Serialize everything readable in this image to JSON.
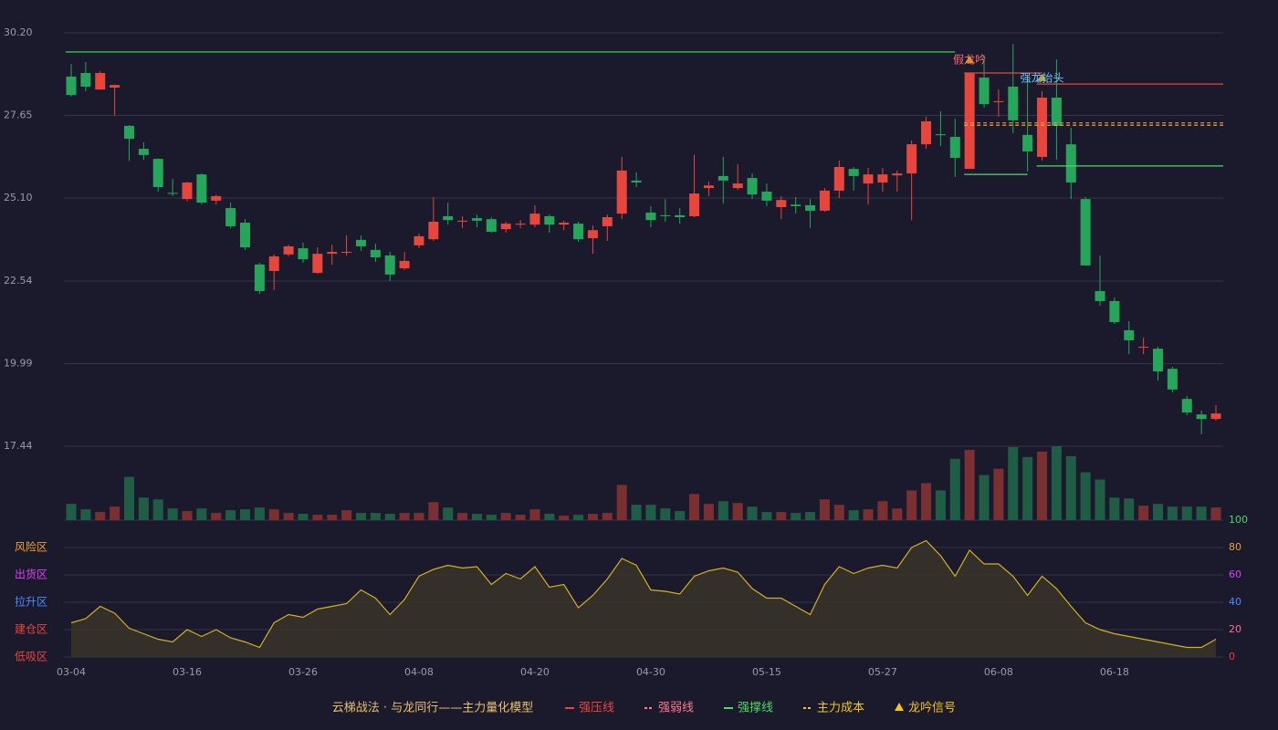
{
  "chart_data": {
    "type": "candlestick",
    "categories": [
      "03-04",
      null,
      null,
      null,
      null,
      null,
      null,
      null,
      "03-16",
      null,
      null,
      null,
      null,
      null,
      null,
      null,
      "03-26",
      null,
      null,
      null,
      null,
      null,
      null,
      null,
      "04-08",
      null,
      null,
      null,
      null,
      null,
      null,
      null,
      "04-20",
      null,
      null,
      null,
      null,
      null,
      null,
      null,
      "04-30",
      null,
      null,
      null,
      null,
      null,
      null,
      null,
      "05-15",
      null,
      null,
      null,
      null,
      null,
      null,
      null,
      "05-27",
      null,
      null,
      null,
      null,
      null,
      null,
      null,
      "06-08",
      null,
      null,
      null,
      null,
      null,
      null,
      null,
      "06-18",
      null,
      null,
      null,
      null,
      null,
      null,
      null
    ],
    "open": [
      28.85,
      28.96,
      28.45,
      28.51,
      27.33,
      26.62,
      26.31,
      25.26,
      25.07,
      25.83,
      25.02,
      24.79,
      24.34,
      23.05,
      22.85,
      23.36,
      23.55,
      22.79,
      23.38,
      23.43,
      23.81,
      23.5,
      23.33,
      22.93,
      23.64,
      23.83,
      24.54,
      24.37,
      24.48,
      24.45,
      24.14,
      24.28,
      24.28,
      24.54,
      24.28,
      24.31,
      23.86,
      24.23,
      24.62,
      25.64,
      24.65,
      24.57,
      24.57,
      24.54,
      25.41,
      25.78,
      25.41,
      25.72,
      25.3,
      24.82,
      24.9,
      24.88,
      24.71,
      25.33,
      26.0,
      25.55,
      25.58,
      25.8,
      25.86,
      26.76,
      27.07,
      26.99,
      26.0,
      28.82,
      28.06,
      28.54,
      27.05,
      26.37,
      28.2,
      26.76,
      25.07,
      22.23,
      21.92,
      21.02,
      20.48,
      20.45,
      19.83,
      18.9,
      18.42,
      18.28
    ],
    "high": [
      29.24,
      29.3,
      29.02,
      28.6,
      27.35,
      26.82,
      26.33,
      25.69,
      25.6,
      25.86,
      25.2,
      24.96,
      24.45,
      23.1,
      23.36,
      23.66,
      23.72,
      23.58,
      23.66,
      23.95,
      23.95,
      23.69,
      23.44,
      23.44,
      24.0,
      25.13,
      24.96,
      24.54,
      24.59,
      24.51,
      24.37,
      24.42,
      24.88,
      24.59,
      24.4,
      24.37,
      24.25,
      24.59,
      26.37,
      25.89,
      24.85,
      25.07,
      24.79,
      26.43,
      25.61,
      26.37,
      26.14,
      25.86,
      25.55,
      25.16,
      25.13,
      25.07,
      25.41,
      26.26,
      26.06,
      26.03,
      26.03,
      25.95,
      26.88,
      27.61,
      27.78,
      27.55,
      28.96,
      29.52,
      28.45,
      29.86,
      28.82,
      28.4,
      29.38,
      27.27,
      25.13,
      23.33,
      22.03,
      21.3,
      20.79,
      20.51,
      19.89,
      18.99,
      18.54,
      18.71
    ],
    "low": [
      28.23,
      28.4,
      28.45,
      27.65,
      26.25,
      26.28,
      25.3,
      25.16,
      25.0,
      24.9,
      24.9,
      24.17,
      23.5,
      22.14,
      22.26,
      23.3,
      23.1,
      22.76,
      23.04,
      23.33,
      23.47,
      23.13,
      22.54,
      22.88,
      23.55,
      23.78,
      24.28,
      24.17,
      24.2,
      24.03,
      24.03,
      24.17,
      24.2,
      24.03,
      24.11,
      23.75,
      23.38,
      23.78,
      24.45,
      25.44,
      24.2,
      24.37,
      24.31,
      24.51,
      25.16,
      24.93,
      25.35,
      25.07,
      24.85,
      24.45,
      24.62,
      24.17,
      24.68,
      25.1,
      25.33,
      24.9,
      25.3,
      25.3,
      24.42,
      26.62,
      26.71,
      25.75,
      26.0,
      27.89,
      27.61,
      27.1,
      25.92,
      26.26,
      26.28,
      25.07,
      23.02,
      21.78,
      21.21,
      20.28,
      20.28,
      19.47,
      19.1,
      18.4,
      17.81,
      18.23
    ],
    "close": [
      28.28,
      28.54,
      28.96,
      28.59,
      26.93,
      26.43,
      25.44,
      25.23,
      25.58,
      24.96,
      25.16,
      24.23,
      23.58,
      22.23,
      23.3,
      23.61,
      23.21,
      23.38,
      23.44,
      23.44,
      23.61,
      23.27,
      22.74,
      23.16,
      23.92,
      24.37,
      24.42,
      24.4,
      24.4,
      24.06,
      24.31,
      24.31,
      24.62,
      24.28,
      24.34,
      23.83,
      24.11,
      24.51,
      25.95,
      25.58,
      24.42,
      24.54,
      24.51,
      25.24,
      25.49,
      25.64,
      25.55,
      25.21,
      25.02,
      25.04,
      24.85,
      24.71,
      25.33,
      26.06,
      25.78,
      25.83,
      25.83,
      25.86,
      26.76,
      27.47,
      27.04,
      26.34,
      28.96,
      28.0,
      28.09,
      27.5,
      26.54,
      28.2,
      27.33,
      25.58,
      23.02,
      21.92,
      21.27,
      20.71,
      20.51,
      19.75,
      19.19,
      18.48,
      18.28,
      18.45
    ],
    "volume": [
      18,
      12,
      9,
      15,
      48,
      25,
      23,
      13,
      10,
      13,
      8,
      11,
      12,
      14,
      12,
      8,
      7,
      6,
      6,
      11,
      8,
      8,
      7,
      8,
      8,
      20,
      14,
      8,
      7,
      6,
      8,
      6,
      12,
      7,
      5,
      6,
      7,
      8,
      39,
      17,
      17,
      13,
      10,
      29,
      18,
      21,
      19,
      15,
      9,
      9,
      8,
      9,
      23,
      17,
      11,
      12,
      21,
      13,
      33,
      41,
      33,
      68,
      78,
      50,
      57,
      81,
      70,
      76,
      82,
      71,
      53,
      45,
      25,
      24,
      16,
      18,
      15,
      15,
      15,
      14
    ],
    "up_color": "#e8463c",
    "down_color": "#26a65b",
    "ylim": [
      17.44,
      30.2
    ],
    "yticks": [
      17.44,
      19.99,
      22.54,
      {
        "value": 25.1,
        "label": "25.10"
      },
      27.65,
      {
        "value": 30.2,
        "label": "30.20"
      }
    ],
    "grid": true,
    "lines": [
      {
        "name": "强压线",
        "color": "#e8463c",
        "style": "solid",
        "segments": [
          {
            "from": 62,
            "to": 67,
            "value": 28.96
          },
          {
            "from": 67,
            "to": 79,
            "value": 28.62
          }
        ]
      },
      {
        "name": "强弱线",
        "color": "#ff7a8a",
        "style": "dashed",
        "segments": [
          {
            "from": 62,
            "to": 79,
            "value": 27.42
          }
        ]
      },
      {
        "name": "强撑线",
        "color": "#4cd964",
        "style": "solid",
        "segments": [
          {
            "from": 0,
            "to": 61,
            "value": 29.61
          },
          {
            "from": 62,
            "to": 66,
            "value": 25.83
          },
          {
            "from": 67,
            "to": 79,
            "value": 26.09
          }
        ]
      },
      {
        "name": "主力成本",
        "color": "#f5c518",
        "style": "dashed",
        "segments": [
          {
            "from": 62,
            "to": 79,
            "value": 27.35
          }
        ]
      }
    ],
    "signal": {
      "name": "龙吟信号",
      "color": "#f5c518"
    },
    "annotations": [
      {
        "text": "假龙吟",
        "index": 62,
        "color": "#ff6b6b"
      },
      {
        "text": "强龙抬头",
        "index": 67,
        "color": "#6ec6ff"
      }
    ],
    "oscillator": {
      "type": "line",
      "color": "#d4b020",
      "values": [
        25,
        28,
        37,
        32,
        21,
        17,
        13,
        11,
        20,
        15,
        20,
        14,
        11,
        7,
        25,
        31,
        29,
        35,
        37,
        39,
        49,
        43,
        31,
        42,
        59,
        64,
        67,
        65,
        66,
        53,
        61,
        57,
        66,
        51,
        53,
        36,
        45,
        57,
        72,
        67,
        49,
        48,
        46,
        59,
        63,
        65,
        62,
        50,
        43,
        43,
        37,
        31,
        53,
        66,
        61,
        65,
        67,
        65,
        80,
        85,
        74,
        59,
        78,
        68,
        68,
        59,
        45,
        59,
        50,
        37,
        25,
        20,
        17,
        15,
        13,
        11,
        9,
        7,
        7,
        13
      ],
      "ylim": [
        0,
        100
      ],
      "yticks": [
        0,
        20,
        40,
        60,
        80,
        100
      ],
      "tick_colors": [
        "#e8463c",
        "#ff6b9a",
        "#4c8cff",
        "#e040fb",
        "#f0a030",
        "#4cd964"
      ],
      "zones": [
        {
          "label": "低吸区",
          "value": 0,
          "color": "#e8463c"
        },
        {
          "label": "建仓区",
          "value": 20,
          "color": "#e8463c"
        },
        {
          "label": "拉升区",
          "value": 40,
          "color": "#4c8cff"
        },
        {
          "label": "出货区",
          "value": 60,
          "color": "#e040fb"
        },
        {
          "label": "风险区",
          "value": 80,
          "color": "#f0a030"
        }
      ]
    },
    "legend": {
      "title": "云梯战法 · 与龙同行——主力量化模型",
      "color": "#e8c070"
    }
  }
}
